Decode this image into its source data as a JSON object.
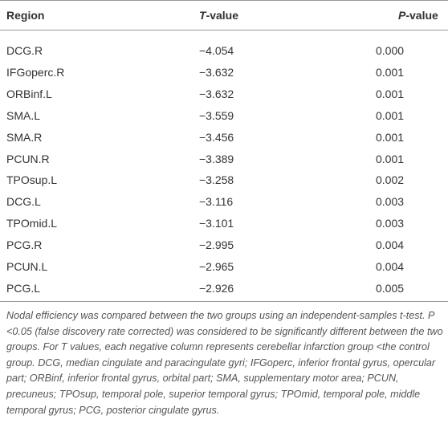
{
  "table": {
    "header": [
      {
        "text": "Region"
      },
      {
        "emphasis": "T",
        "text": "-value"
      },
      {
        "emphasis": "P",
        "text": "-value"
      }
    ],
    "rows": [
      [
        "DCG.R",
        "−4.054",
        "0.000"
      ],
      [
        "IFGoperc.R",
        "−3.632",
        "0.001"
      ],
      [
        "ORBinf.L",
        "−3.632",
        "0.001"
      ],
      [
        "SMA.L",
        "−3.559",
        "0.001"
      ],
      [
        "SMA.R",
        "−3.456",
        "0.001"
      ],
      [
        "PCUN.R",
        "−3.389",
        "0.001"
      ],
      [
        "TPOsup.L",
        "−3.258",
        "0.002"
      ],
      [
        "DCG.L",
        "−3.116",
        "0.003"
      ],
      [
        "TPOmid.L",
        "−3.101",
        "0.003"
      ],
      [
        "PCG.R",
        "−2.995",
        "0.004"
      ],
      [
        "PCUN.L",
        "−2.965",
        "0.004"
      ],
      [
        "PCG.L",
        "−2.926",
        "0.005"
      ]
    ],
    "note": "Nodal efficiency was compared between the two groups using an independent-samples t-test. P <0.05 (false discovery rate corrected) was considered to be significantly different between the two groups. For T values, each negative column represents cerebellar infarction group <the control group. DCG, median cingulate and paracingulate gyri; IFGoperc, inferior frontal gyrus, opercular part; ORBinf, inferior frontal gyrus, orbital part; SMA, supplementary motor area; PCUN, precuneus; TPOsup, temporal pole, superior temporal gyrus; TPOmid, temporal pole, middle temporal gyrus; PCG, posterior cingulate gyrus."
  }
}
